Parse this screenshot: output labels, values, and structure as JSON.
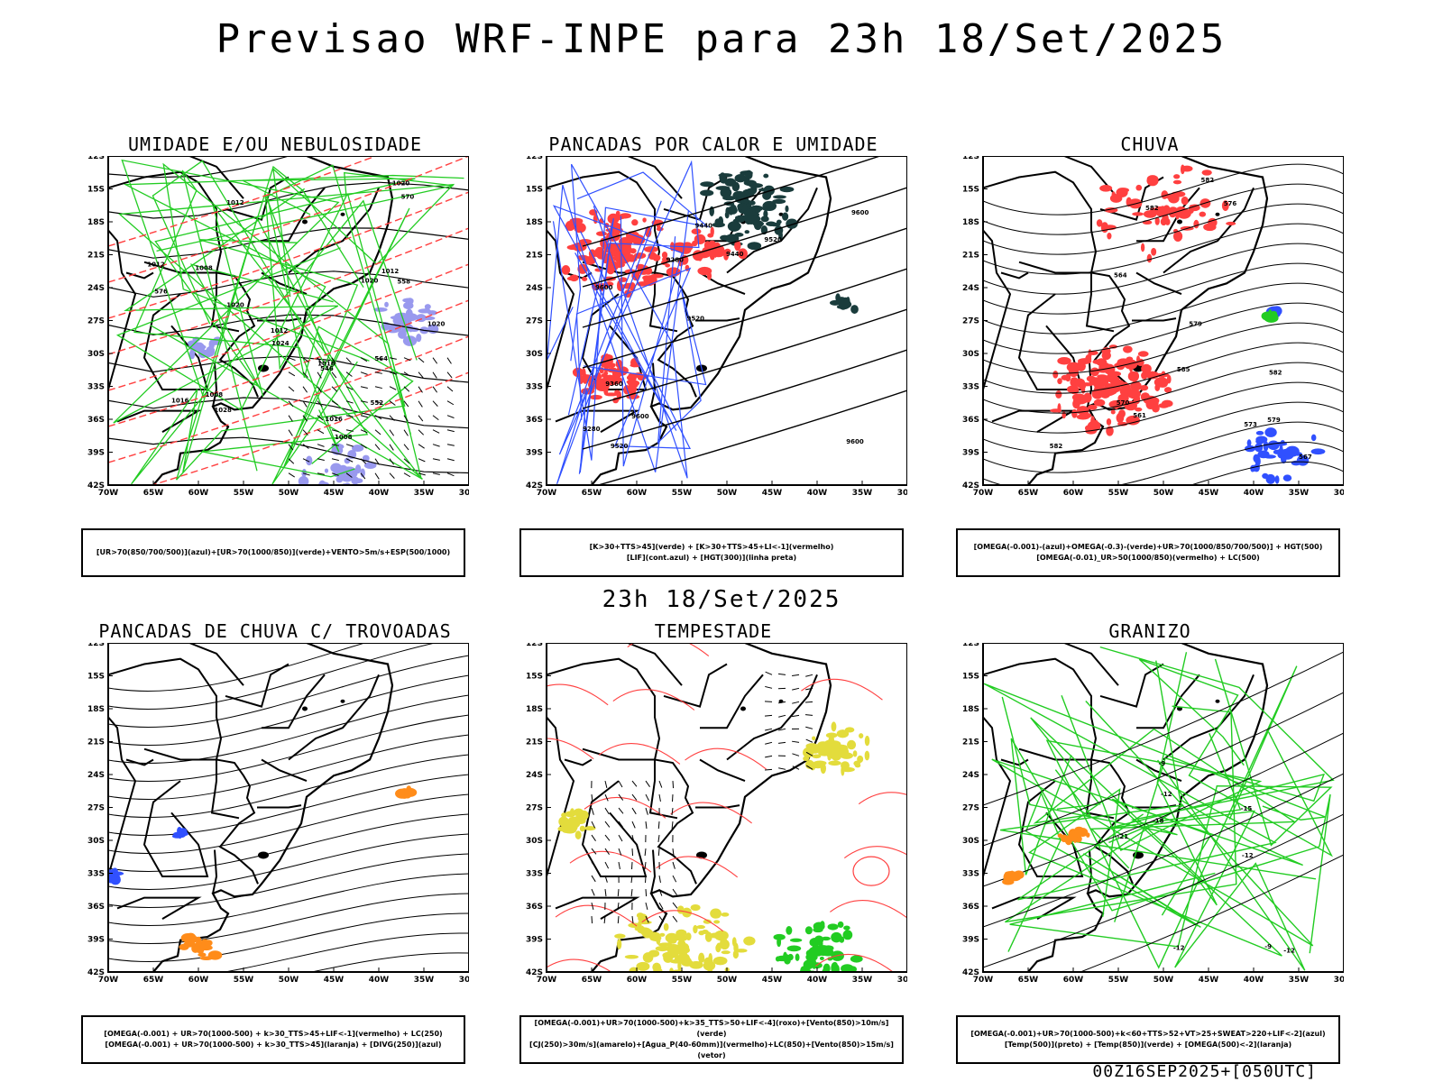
{
  "title": "Previsao WRF-INPE  para 23h 18/Set/2025",
  "mid_title": "23h 18/Set/2025",
  "footer": "00Z16SEP2025+[050UTC]",
  "axes": {
    "lat_labels": [
      "12S",
      "15S",
      "18S",
      "21S",
      "24S",
      "27S",
      "30S",
      "33S",
      "36S",
      "39S",
      "42S"
    ],
    "lon_labels": [
      "70W",
      "65W",
      "60W",
      "55W",
      "50W",
      "45W",
      "40W",
      "35W",
      "30W"
    ]
  },
  "colors": {
    "blue": "#3050ff",
    "green": "#22cc22",
    "red": "#ff4040",
    "darkteal": "#1a3c3c",
    "yellow": "#e3dc3c",
    "lavender": "#9999ee",
    "orange": "#ff8c1a"
  },
  "panels": [
    {
      "id": "umidade",
      "title": "UMIDADE E/OU NEBULOSIDADE",
      "legend": [
        "[UR>70(850/700/500)](azul)+[UR>70(1000/850)](verde)+VENTO>5m/s+ESP(500/1000)"
      ],
      "contour_labels": [
        "1008",
        "1012",
        "1008",
        "1008",
        "1012",
        "1016",
        "1020",
        "1020",
        "1024",
        "1028",
        "1016",
        "1012",
        "1012",
        "1016",
        "1020",
        "1020",
        "576",
        "570",
        "564",
        "558",
        "552",
        "546"
      ]
    },
    {
      "id": "pancadas-calor",
      "title": "PANCADAS POR CALOR E UMIDADE",
      "legend": [
        "[K>30+TTS>45](verde) + [K>30+TTS>45+LI<-1](vermelho)",
        "[LIF](cont.azul) + [HGT(300)](linha preta)"
      ],
      "contour_labels": [
        "9600",
        "9600",
        "9600",
        "9520",
        "9520",
        "9520",
        "9440",
        "9440",
        "9360",
        "9280",
        "9280",
        "9600"
      ]
    },
    {
      "id": "chuva",
      "title": "CHUVA",
      "legend": [
        "[OMEGA(-0.001)-(azul)+OMEGA(-0.3)-(verde)+UR>70(1000/850/700/500)] + HGT(500)",
        "[OMEGA(-0.01)_UR>50(1000/850)(vermelho) + LC(500)"
      ],
      "contour_labels": [
        "582",
        "582",
        "579",
        "585",
        "582",
        "582",
        "579",
        "576",
        "573",
        "570",
        "567",
        "564",
        "561"
      ]
    },
    {
      "id": "pancadas-trovoadas",
      "title": "PANCADAS DE CHUVA C/ TROVOADAS",
      "legend": [
        "[OMEGA(-0.001) + UR>70(1000-500) + k>30_TTS>45+LIF<-1](vermelho) + LC(250)",
        "[OMEGA(-0.001) + UR>70(1000-500) + k>30_TTS>45](laranja) + [DIVG(250)](azul)"
      ],
      "contour_labels": []
    },
    {
      "id": "tempestade",
      "title": "TEMPESTADE",
      "legend": [
        "[OMEGA(-0.001)+UR>70(1000-500)+k>35_TTS>50+LIF<-4](roxo)+[Vento(850)>10m/s](verde)",
        "[CJ(250)>30m/s](amarelo)+[Agua_P(40-60mm)](vermelho)+LC(850)+[Vento(850)>15m/s](vetor)"
      ],
      "contour_labels": []
    },
    {
      "id": "granizo",
      "title": "GRANIZO",
      "legend": [
        "[OMEGA(-0.001)+UR>70(1000-500)+k<60+TTS>52+VT>25+SWEAT>220+LIF<-2](azul)",
        "[Temp(500)](preto) + [Temp(850)](verde) + [OMEGA(500)<-2](laranja)"
      ],
      "contour_labels": [
        "-9",
        "-12",
        "-12",
        "-12",
        "-15",
        "-18",
        "-21",
        "-12",
        "-9"
      ]
    }
  ]
}
